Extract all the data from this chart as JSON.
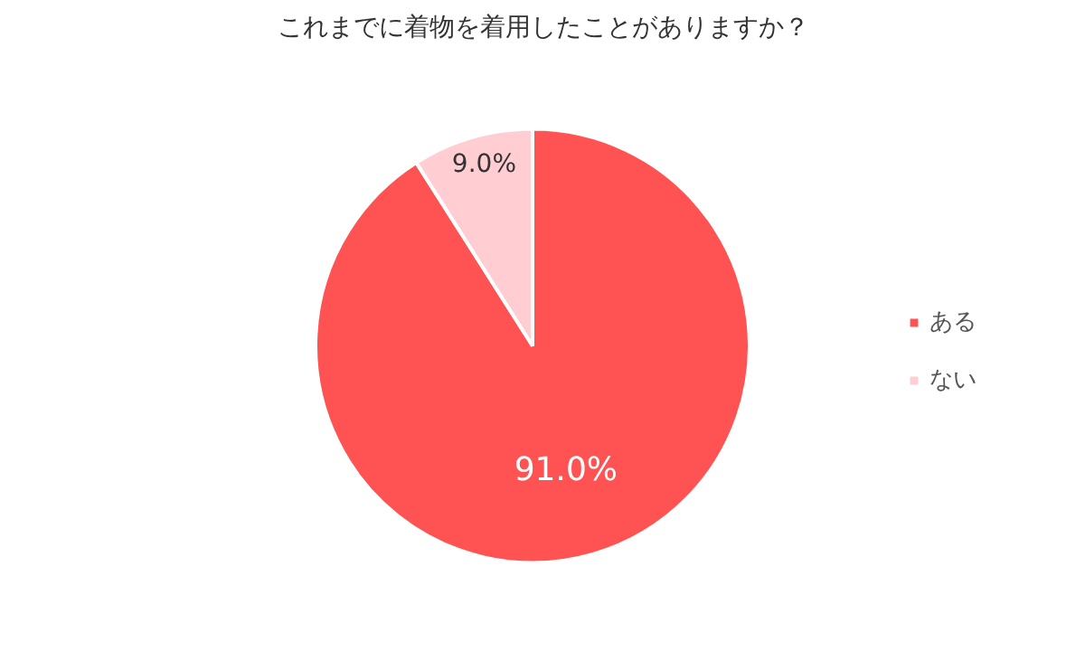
{
  "chart_data": {
    "type": "pie",
    "title": "これまでに着物を着用したことがありますか？",
    "categories": [
      "ある",
      "ない"
    ],
    "values": [
      91.0,
      9.0
    ],
    "colors": [
      "#ff5252",
      "#ffcdd2"
    ],
    "value_labels": [
      "91.0%",
      "9.0%"
    ],
    "legend": "right"
  }
}
